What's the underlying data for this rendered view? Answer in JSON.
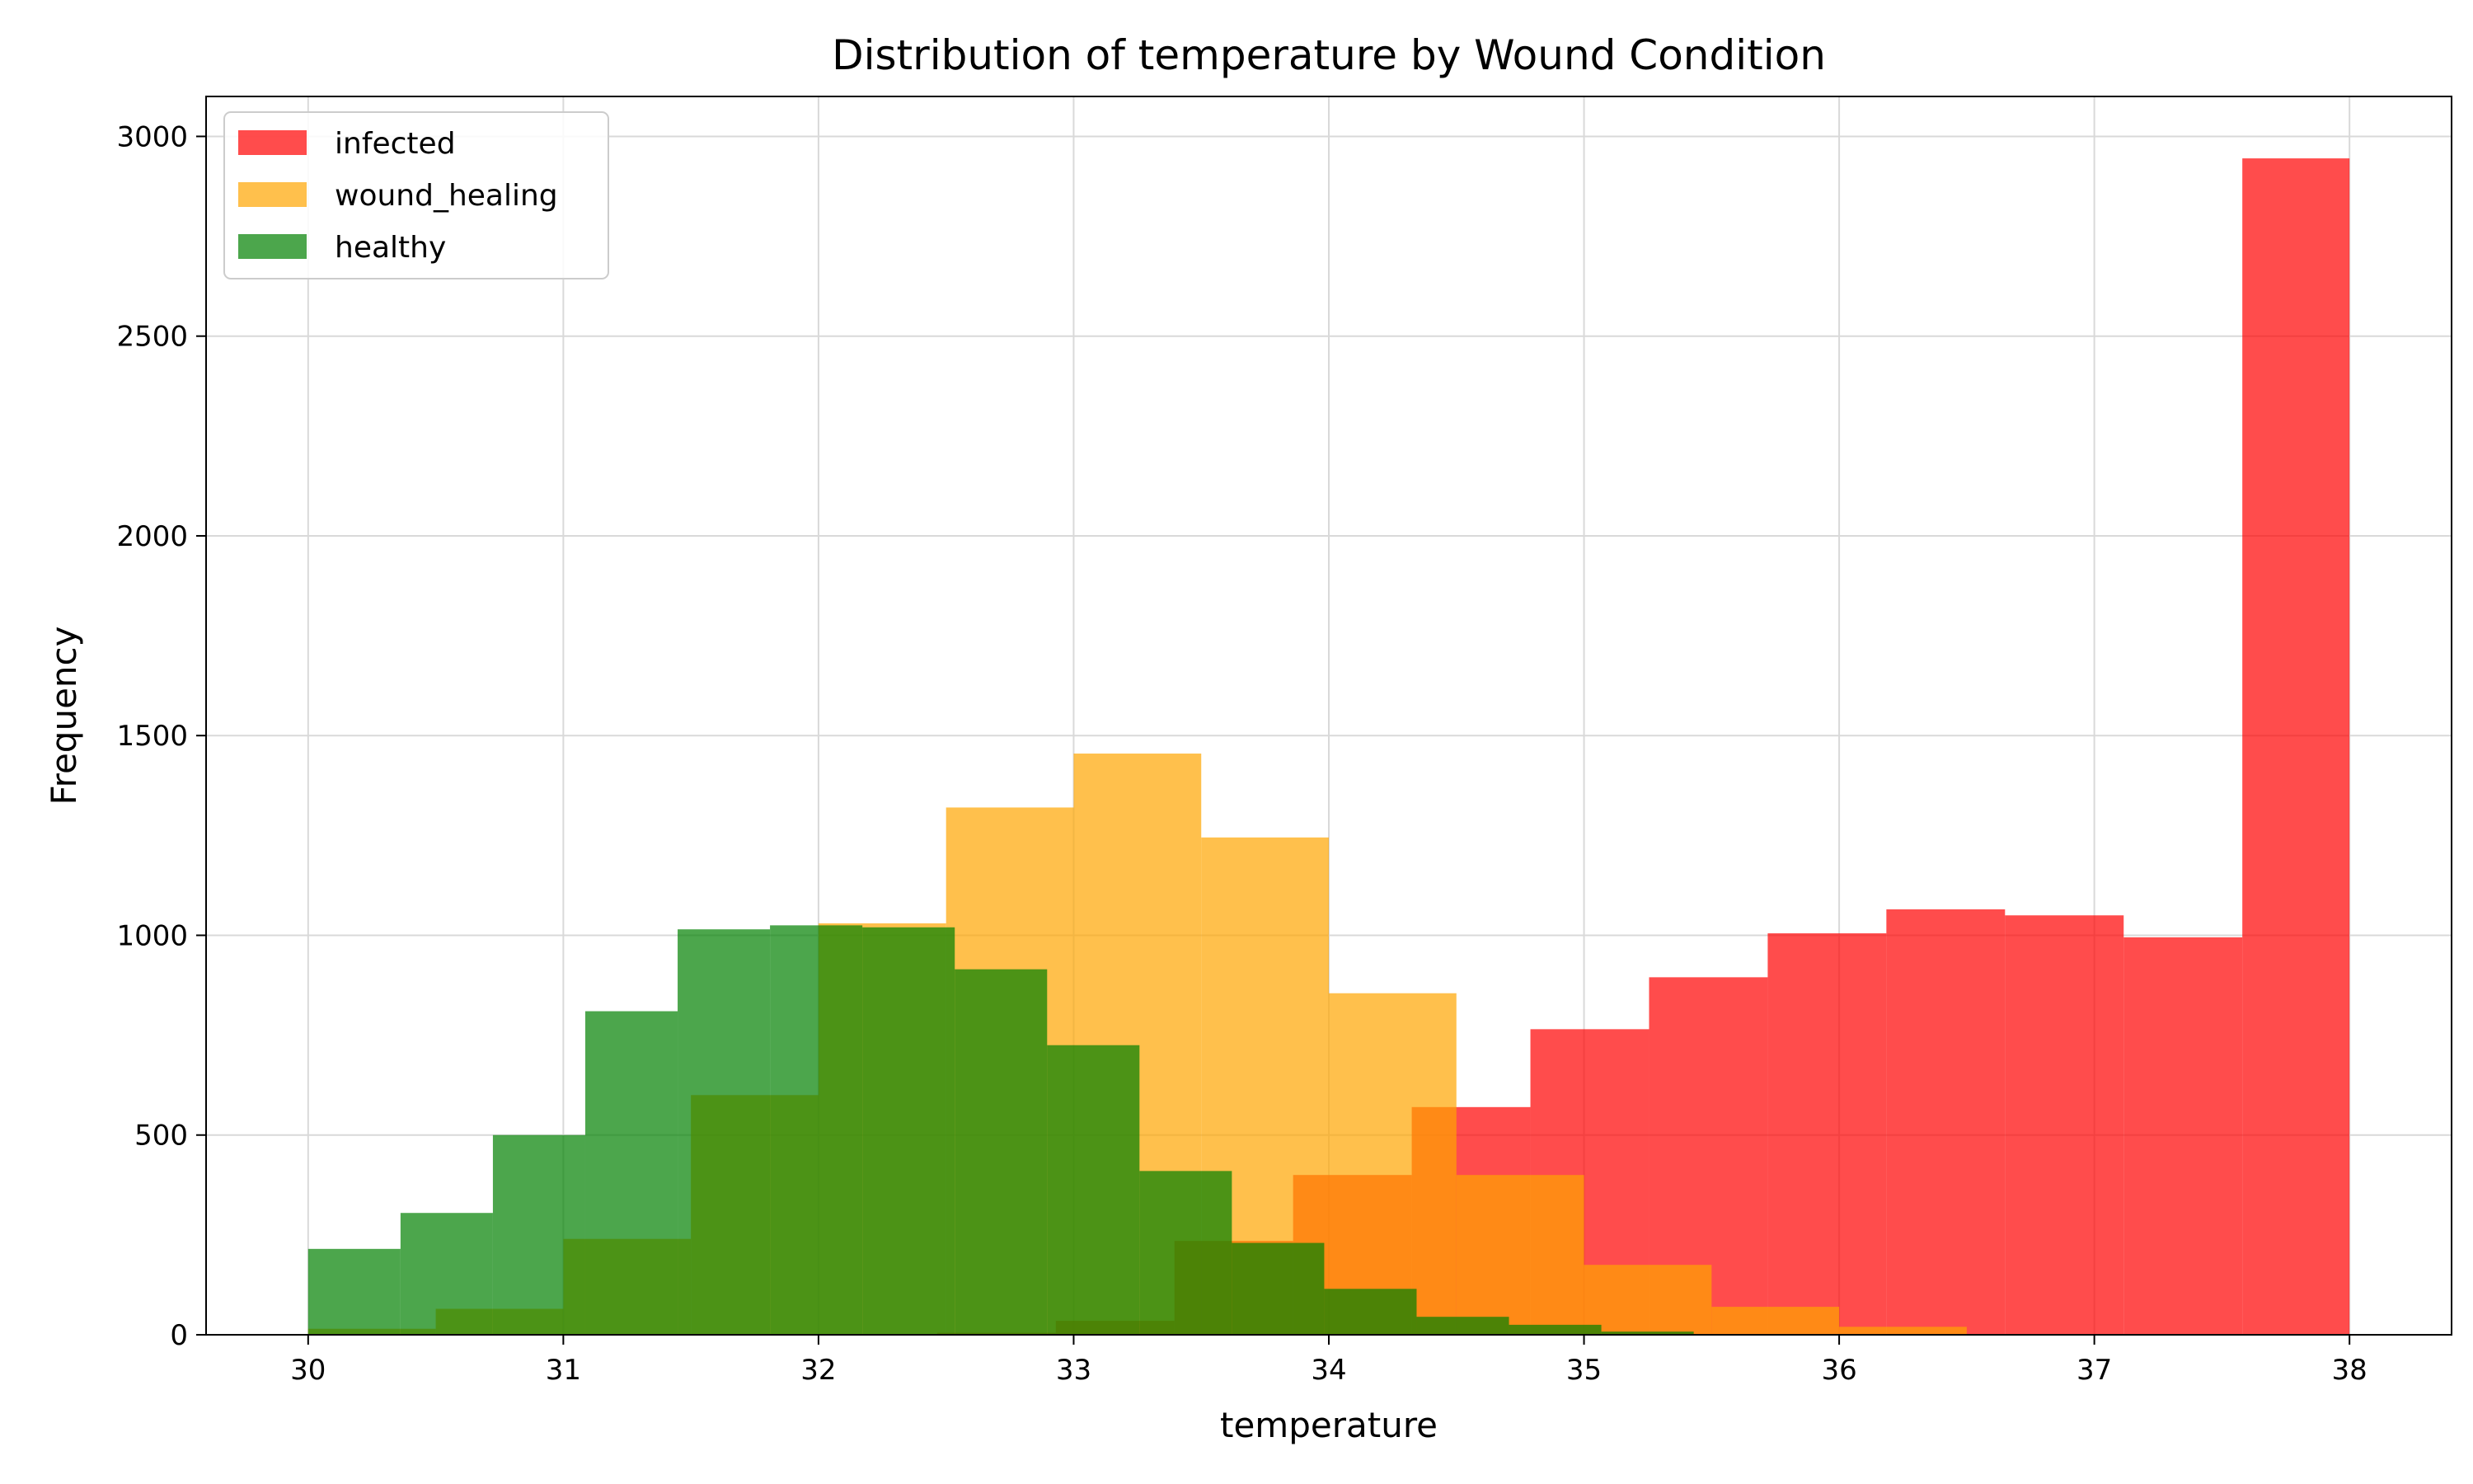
{
  "chart_data": {
    "type": "histogram",
    "title": "Distribution of temperature by Wound Condition",
    "xlabel": "temperature",
    "ylabel": "Frequency",
    "xlim": [
      29.6,
      38.4
    ],
    "ylim": [
      0,
      3100
    ],
    "xticks": [
      30,
      31,
      32,
      33,
      34,
      35,
      36,
      37,
      38
    ],
    "yticks": [
      0,
      500,
      1000,
      1500,
      2000,
      2500,
      3000
    ],
    "grid": true,
    "legend_position": "upper-left",
    "opacity": 0.7,
    "series": [
      {
        "name": "infected",
        "color": "#ff0000",
        "bins": [
          [
            32.0,
            32.465,
            0
          ],
          [
            32.465,
            32.93,
            5
          ],
          [
            32.93,
            33.395,
            35
          ],
          [
            33.395,
            33.86,
            235
          ],
          [
            33.86,
            34.325,
            400
          ],
          [
            34.325,
            34.79,
            570
          ],
          [
            34.79,
            35.255,
            765
          ],
          [
            35.255,
            35.72,
            895
          ],
          [
            35.72,
            36.185,
            1005
          ],
          [
            36.185,
            36.65,
            1065
          ],
          [
            36.65,
            37.115,
            1050
          ],
          [
            37.115,
            37.58,
            995
          ],
          [
            37.58,
            38.0,
            2945
          ]
        ]
      },
      {
        "name": "wound_healing",
        "color": "#ffa500",
        "bins": [
          [
            30.0,
            30.5,
            15
          ],
          [
            30.5,
            31.0,
            65
          ],
          [
            31.0,
            31.5,
            240
          ],
          [
            31.5,
            32.0,
            600
          ],
          [
            32.0,
            32.5,
            1030
          ],
          [
            32.5,
            33.0,
            1320
          ],
          [
            33.0,
            33.5,
            1455
          ],
          [
            33.5,
            34.0,
            1245
          ],
          [
            34.0,
            34.5,
            855
          ],
          [
            34.5,
            35.0,
            400
          ],
          [
            35.0,
            35.5,
            175
          ],
          [
            35.5,
            36.0,
            70
          ],
          [
            36.0,
            36.5,
            20
          ]
        ]
      },
      {
        "name": "healthy",
        "color": "#008000",
        "bins": [
          [
            30.0,
            30.362,
            215
          ],
          [
            30.362,
            30.724,
            305
          ],
          [
            30.724,
            31.086,
            500
          ],
          [
            31.086,
            31.448,
            810
          ],
          [
            31.448,
            31.81,
            1015
          ],
          [
            31.81,
            32.172,
            1025
          ],
          [
            32.172,
            32.534,
            1020
          ],
          [
            32.534,
            32.896,
            915
          ],
          [
            32.896,
            33.258,
            725
          ],
          [
            33.258,
            33.62,
            410
          ],
          [
            33.62,
            33.982,
            230
          ],
          [
            33.982,
            34.344,
            115
          ],
          [
            34.344,
            34.706,
            45
          ],
          [
            34.706,
            35.068,
            25
          ],
          [
            35.068,
            35.43,
            8
          ]
        ]
      }
    ]
  }
}
